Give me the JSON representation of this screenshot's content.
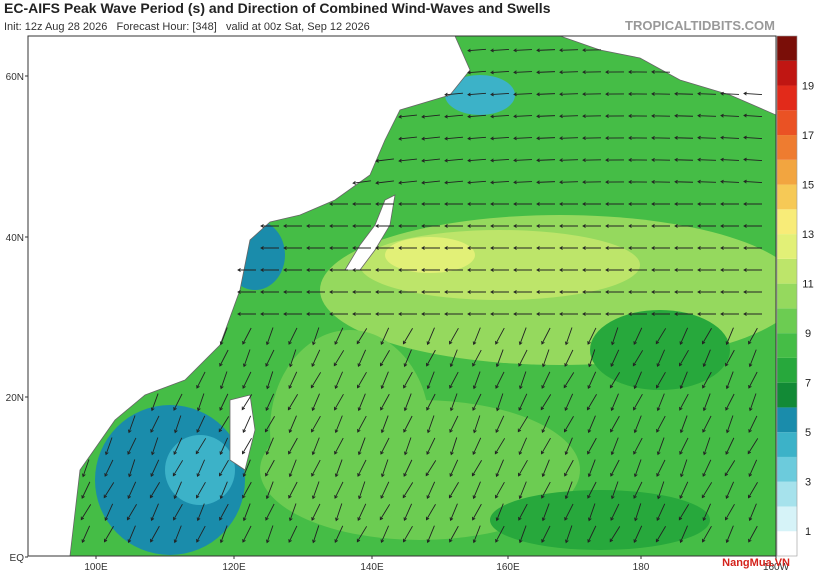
{
  "header": {
    "title": "EC-AIFS Peak Wave Period (s) and Direction of Combined Wind-Waves and Swells",
    "subtitle": "Init: 12z Aug 28 2026   Forecast Hour: [348]   valid at 00z Sat, Sep 12 2026",
    "site": "TROPICALTIDBITS.COM"
  },
  "map": {
    "lat_labels": [
      "60N",
      "40N",
      "20N",
      "EQ"
    ],
    "lon_labels": [
      "100E",
      "120E",
      "140E",
      "160E",
      "180",
      "160W"
    ]
  },
  "colorbar": {
    "range": [
      0,
      21
    ],
    "ticks": [
      1,
      3,
      5,
      7,
      9,
      11,
      13,
      15,
      17,
      19
    ],
    "colors": [
      "#ffffff",
      "#d6f3f8",
      "#a6e2ec",
      "#6ccbdc",
      "#3cb2c8",
      "#1a8cab",
      "#128a36",
      "#27a83c",
      "#45bd46",
      "#6ccc52",
      "#95d95e",
      "#bde56a",
      "#e2f077",
      "#f8ec78",
      "#f6c956",
      "#f2a540",
      "#ee7c30",
      "#ea5224",
      "#e22a1a",
      "#c01612",
      "#7a0e08"
    ]
  },
  "watermark": "NangMua.VN"
}
